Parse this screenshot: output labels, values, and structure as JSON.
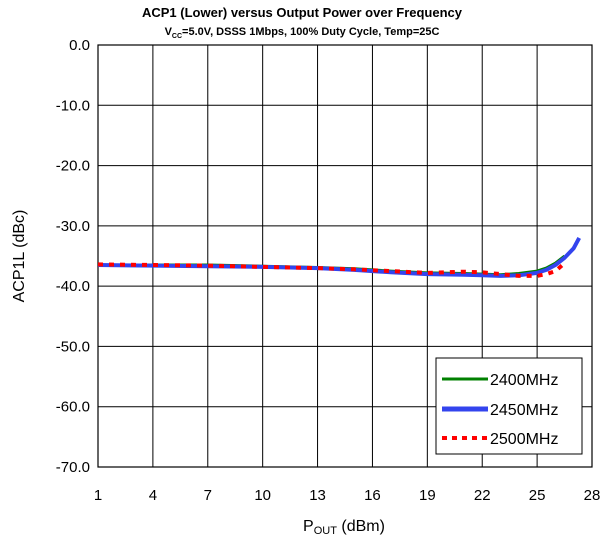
{
  "chart_data": {
    "type": "line",
    "title": "ACP1 (Lower) versus Output Power over Frequency",
    "subtitle_pre": "V",
    "subtitle_sub": "CC",
    "subtitle_post": "=5.0V, DSSS 1Mbps, 100% Duty Cycle, Temp=25C",
    "xlabel_main": "P",
    "xlabel_sub": "OUT",
    "xlabel_unit": " (dBm)",
    "ylabel": "ACP1L (dBc)",
    "xlim": [
      1,
      28
    ],
    "ylim": [
      -70,
      0
    ],
    "xticks": [
      1,
      4,
      7,
      10,
      13,
      16,
      19,
      22,
      25,
      28
    ],
    "yticks": [
      0,
      -10,
      -20,
      -30,
      -40,
      -50,
      -60,
      -70
    ],
    "ytick_labels": [
      "0.0",
      "-10.0",
      "-20.0",
      "-30.0",
      "-40.0",
      "-50.0",
      "-60.0",
      "-70.0"
    ],
    "grid": true,
    "legend_position": "bottom-right",
    "series": [
      {
        "name": "2400MHz",
        "color": "#008000",
        "style": "solid",
        "x": [
          1,
          4,
          7,
          10,
          13,
          15,
          17,
          19,
          21,
          22,
          23,
          24,
          25,
          25.5,
          26,
          26.5
        ],
        "y": [
          -36.5,
          -36.5,
          -36.5,
          -36.7,
          -36.9,
          -37.1,
          -37.5,
          -37.8,
          -37.9,
          -38.0,
          -38.1,
          -37.9,
          -37.5,
          -37.0,
          -36.2,
          -35.0
        ]
      },
      {
        "name": "2450MHz",
        "color": "#3344ee",
        "style": "solid",
        "x": [
          1,
          4,
          7,
          10,
          13,
          15,
          17,
          19,
          21,
          22,
          23,
          24,
          25,
          25.5,
          26,
          26.5,
          27,
          27.3
        ],
        "y": [
          -36.5,
          -36.6,
          -36.7,
          -36.8,
          -37.0,
          -37.3,
          -37.7,
          -38.0,
          -38.1,
          -38.2,
          -38.3,
          -38.2,
          -37.8,
          -37.3,
          -36.5,
          -35.3,
          -33.7,
          -32.0
        ]
      },
      {
        "name": "2500MHz",
        "color": "#ff0000",
        "style": "dotted",
        "x": [
          1,
          4,
          7,
          10,
          13,
          15,
          17,
          19,
          21,
          22,
          23,
          24,
          25,
          25.5,
          26,
          26.5
        ],
        "y": [
          -36.4,
          -36.5,
          -36.6,
          -36.8,
          -37.0,
          -37.2,
          -37.5,
          -37.8,
          -37.6,
          -37.7,
          -38.0,
          -38.3,
          -38.3,
          -38.0,
          -37.5,
          -36.2
        ]
      }
    ]
  }
}
